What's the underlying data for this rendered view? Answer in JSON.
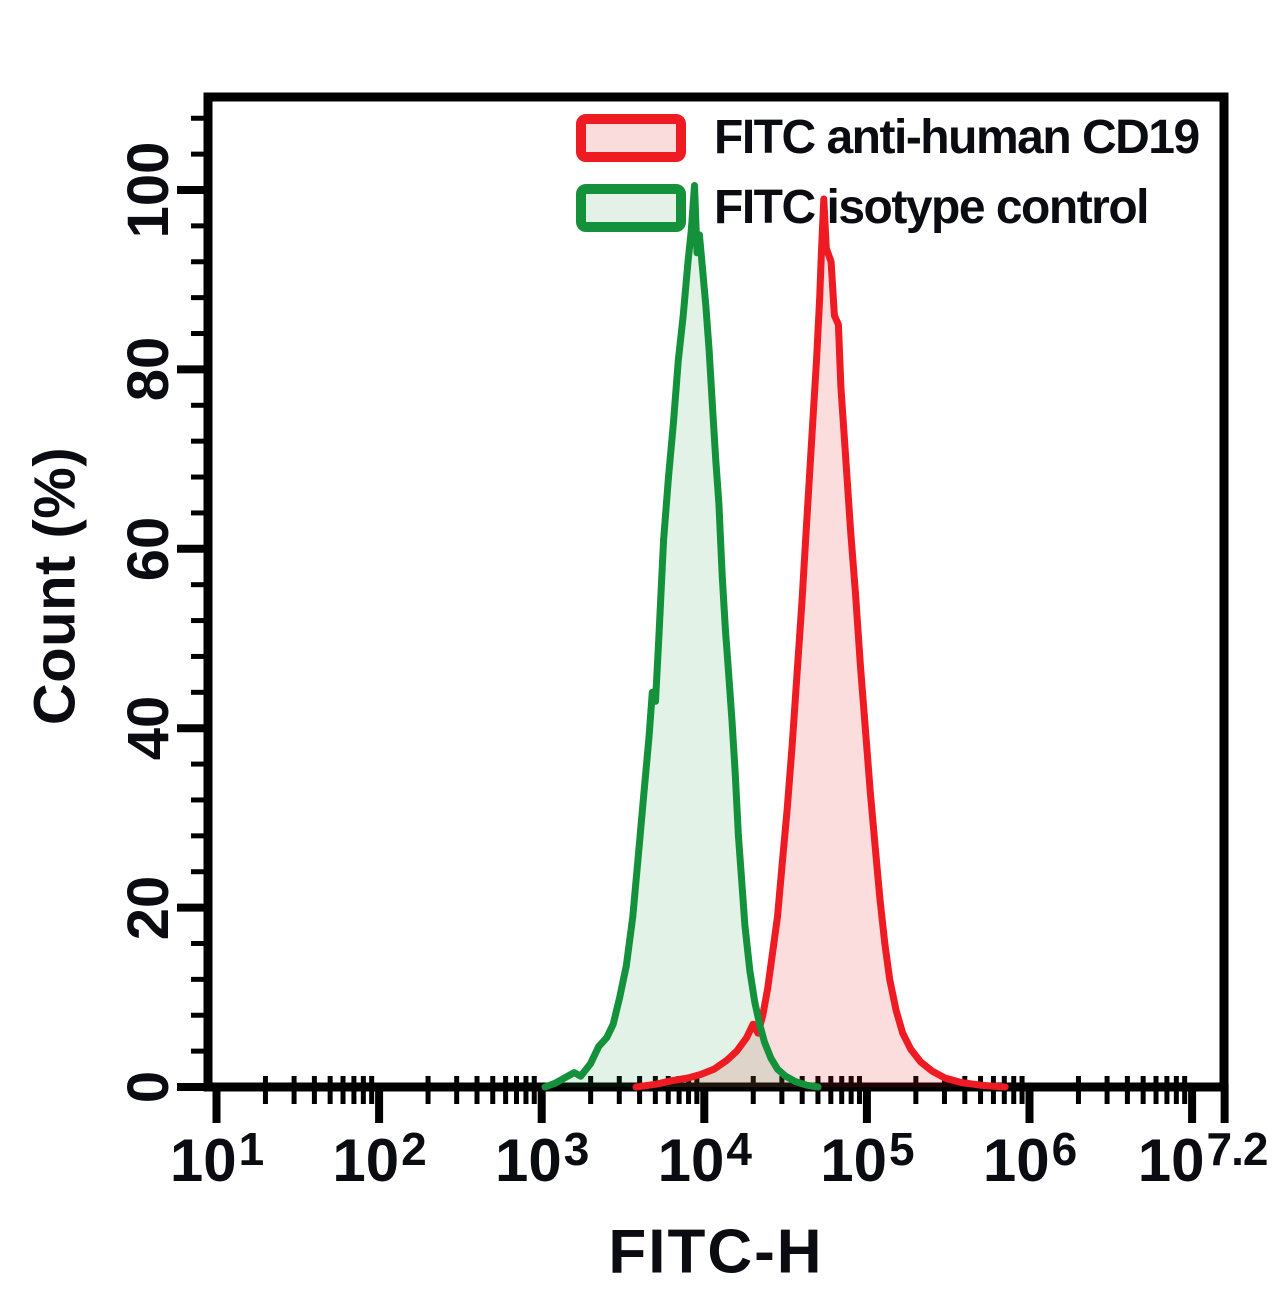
{
  "figure": {
    "background": "#ffffff"
  },
  "chart_data": {
    "type": "area",
    "subtype": "flow-cytometry-histogram",
    "title": "",
    "xlabel": "FITC-H",
    "ylabel": "Count (%)",
    "x_scale": "log10",
    "x_domain_log10": [
      1,
      7.2
    ],
    "y_domain": [
      0,
      110
    ],
    "grid": false,
    "axis_color": "#000000",
    "text_color": "#0b0b12",
    "y_major_ticks": [
      0,
      20,
      40,
      60,
      80,
      100
    ],
    "y_minor_tick_step": 4,
    "y_minor_tick_max": 108,
    "x_major_ticks_log10": [
      1,
      2,
      3,
      4,
      5,
      6,
      7,
      7.2
    ],
    "x_tick_labels": [
      {
        "log10": 1,
        "base": "10",
        "exp": "1"
      },
      {
        "log10": 2,
        "base": "10",
        "exp": "2"
      },
      {
        "log10": 3,
        "base": "10",
        "exp": "3"
      },
      {
        "log10": 4,
        "base": "10",
        "exp": "4"
      },
      {
        "log10": 5,
        "base": "10",
        "exp": "5"
      },
      {
        "log10": 6,
        "base": "10",
        "exp": "6"
      },
      {
        "log10": 7.2,
        "base": "10",
        "exp": "7.2"
      }
    ],
    "legend": {
      "position": "top-right",
      "items": [
        {
          "label": "FITC anti-human CD19",
          "line_color": "#ee1b23",
          "fill_color": "#fbdcdd"
        },
        {
          "label": "FITC isotype control",
          "line_color": "#14913b",
          "fill_color": "#e4f1e7"
        }
      ]
    },
    "series": [
      {
        "name": "FITC anti-human CD19",
        "line_color": "#ee1b23",
        "fill_color": "rgba(238,27,35,0.15)",
        "peak_log10x": 4.735,
        "peak_percent": 99,
        "points_log10x_percent": [
          [
            3.58,
            0
          ],
          [
            3.7,
            0.3
          ],
          [
            3.8,
            0.7
          ],
          [
            3.9,
            1
          ],
          [
            3.98,
            1.4
          ],
          [
            4.06,
            2
          ],
          [
            4.14,
            3
          ],
          [
            4.2,
            4
          ],
          [
            4.26,
            5.5
          ],
          [
            4.3,
            7
          ],
          [
            4.33,
            6
          ],
          [
            4.36,
            8
          ],
          [
            4.39,
            11
          ],
          [
            4.42,
            15
          ],
          [
            4.45,
            19
          ],
          [
            4.48,
            25
          ],
          [
            4.51,
            31
          ],
          [
            4.54,
            38
          ],
          [
            4.57,
            46
          ],
          [
            4.6,
            54
          ],
          [
            4.63,
            63
          ],
          [
            4.66,
            72
          ],
          [
            4.69,
            81
          ],
          [
            4.71,
            88
          ],
          [
            4.72,
            93
          ],
          [
            4.735,
            99
          ],
          [
            4.75,
            93.5
          ],
          [
            4.78,
            92
          ],
          [
            4.8,
            86
          ],
          [
            4.825,
            85
          ],
          [
            4.84,
            78
          ],
          [
            4.87,
            70
          ],
          [
            4.9,
            62
          ],
          [
            4.93,
            55
          ],
          [
            4.96,
            47
          ],
          [
            4.99,
            40
          ],
          [
            5.02,
            33
          ],
          [
            5.05,
            27
          ],
          [
            5.08,
            21
          ],
          [
            5.11,
            16
          ],
          [
            5.14,
            12
          ],
          [
            5.18,
            8.5
          ],
          [
            5.22,
            6
          ],
          [
            5.27,
            4.2
          ],
          [
            5.33,
            2.8
          ],
          [
            5.4,
            1.8
          ],
          [
            5.48,
            1
          ],
          [
            5.58,
            0.5
          ],
          [
            5.7,
            0.2
          ],
          [
            5.85,
            0
          ]
        ]
      },
      {
        "name": "FITC isotype control",
        "line_color": "#14913b",
        "fill_color": "rgba(20,145,59,0.12)",
        "peak_log10x": 3.94,
        "peak_percent": 100,
        "points_log10x_percent": [
          [
            3.02,
            0
          ],
          [
            3.08,
            0.4
          ],
          [
            3.14,
            1.0
          ],
          [
            3.2,
            1.6
          ],
          [
            3.24,
            1.2
          ],
          [
            3.3,
            2.6
          ],
          [
            3.35,
            4.5
          ],
          [
            3.4,
            5.5
          ],
          [
            3.44,
            7
          ],
          [
            3.48,
            10
          ],
          [
            3.52,
            13.5
          ],
          [
            3.56,
            19
          ],
          [
            3.6,
            27
          ],
          [
            3.63,
            33
          ],
          [
            3.66,
            39
          ],
          [
            3.68,
            44
          ],
          [
            3.7,
            43
          ],
          [
            3.72,
            50
          ],
          [
            3.75,
            61
          ],
          [
            3.78,
            68
          ],
          [
            3.81,
            74
          ],
          [
            3.84,
            81
          ],
          [
            3.87,
            86
          ],
          [
            3.9,
            92
          ],
          [
            3.92,
            95.5
          ],
          [
            3.94,
            100.5
          ],
          [
            3.955,
            93
          ],
          [
            3.97,
            95
          ],
          [
            3.99,
            91
          ],
          [
            4.01,
            87
          ],
          [
            4.03,
            82
          ],
          [
            4.05,
            76
          ],
          [
            4.07,
            70
          ],
          [
            4.09,
            65
          ],
          [
            4.11,
            57
          ],
          [
            4.13,
            51
          ],
          [
            4.15,
            46
          ],
          [
            4.17,
            41
          ],
          [
            4.19,
            35
          ],
          [
            4.21,
            28
          ],
          [
            4.23,
            23
          ],
          [
            4.25,
            18
          ],
          [
            4.28,
            13
          ],
          [
            4.31,
            9.5
          ],
          [
            4.34,
            7
          ],
          [
            4.37,
            5
          ],
          [
            4.41,
            3.2
          ],
          [
            4.45,
            2
          ],
          [
            4.5,
            1.2
          ],
          [
            4.56,
            0.6
          ],
          [
            4.63,
            0.2
          ],
          [
            4.7,
            0
          ]
        ]
      }
    ]
  }
}
